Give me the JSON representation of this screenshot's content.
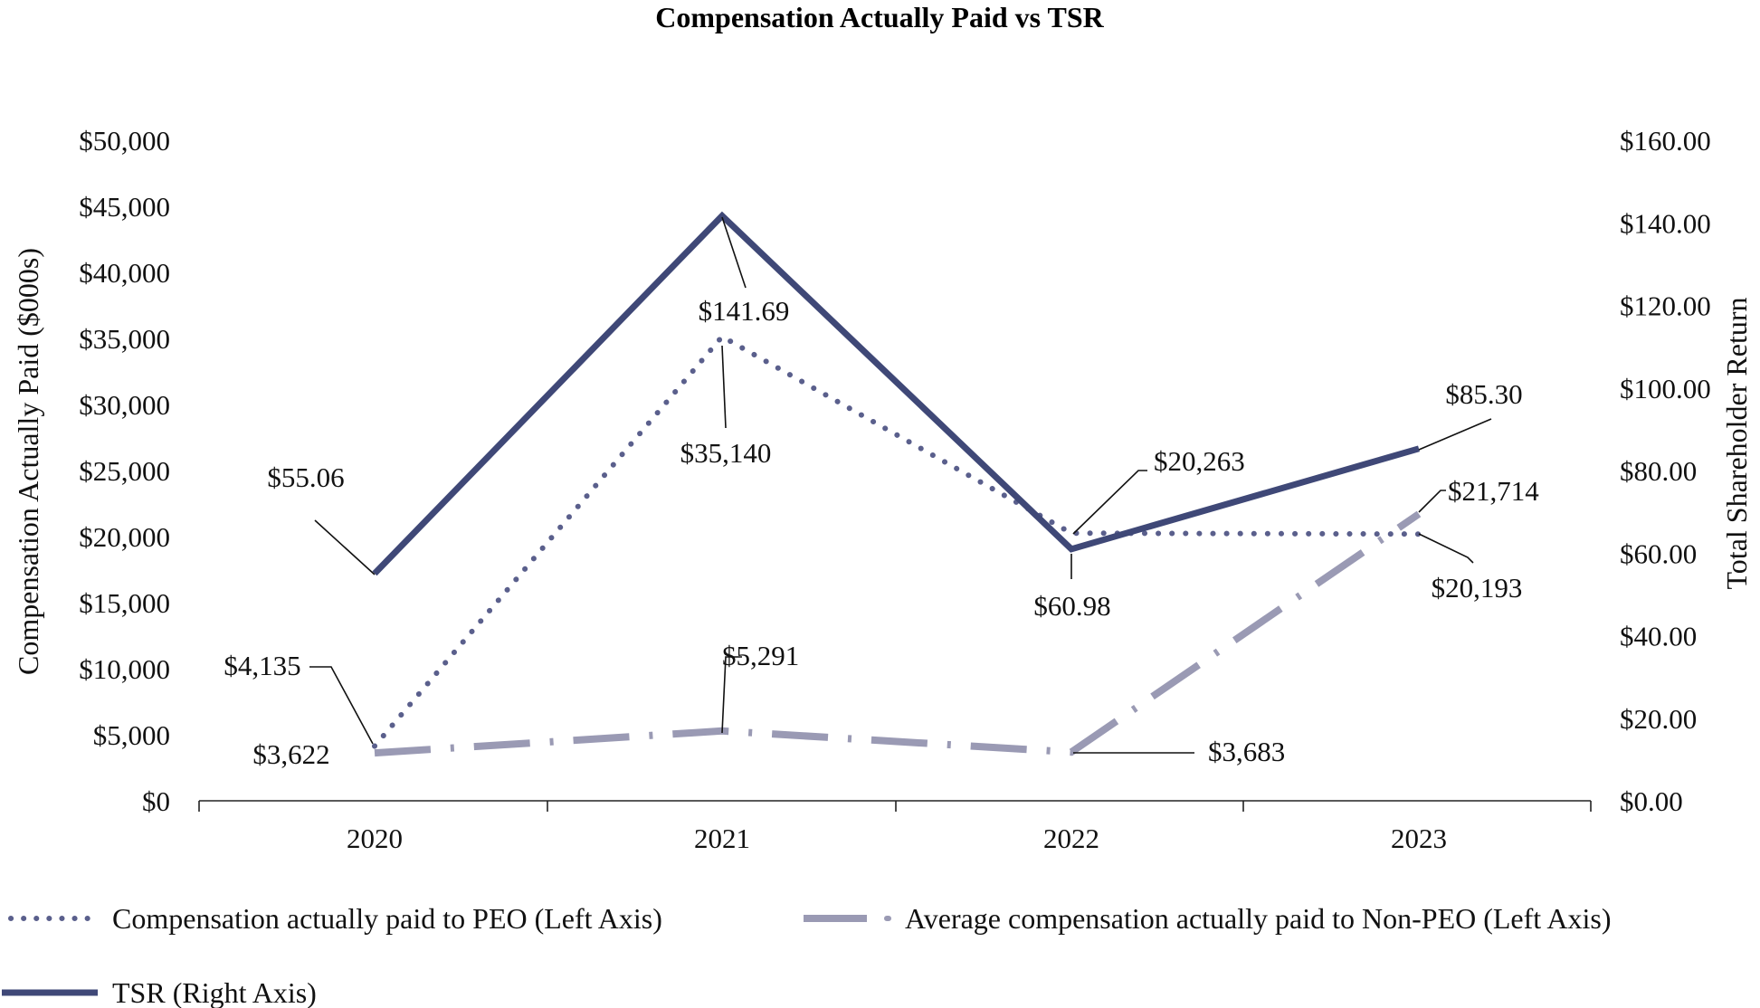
{
  "chart_data": {
    "type": "line",
    "title": "Compensation Actually Paid vs TSR",
    "categories": [
      "2020",
      "2021",
      "2022",
      "2023"
    ],
    "left_axis": {
      "label": "Compensation Actually Paid ($000s)",
      "range": [
        0,
        50000
      ],
      "ticks": [
        "$0",
        "$5,000",
        "$10,000",
        "$15,000",
        "$20,000",
        "$25,000",
        "$30,000",
        "$35,000",
        "$40,000",
        "$45,000",
        "$50,000"
      ]
    },
    "right_axis": {
      "label": "Total Shareholder Return",
      "range": [
        0,
        160
      ],
      "ticks": [
        "$0.00",
        "$20.00",
        "$40.00",
        "$60.00",
        "$80.00",
        "$100.00",
        "$120.00",
        "$140.00",
        "$160.00"
      ]
    },
    "grid": false,
    "legend_position": "bottom",
    "series": [
      {
        "name": "Compensation actually paid to PEO (Left Axis)",
        "axis": "left",
        "style": "dotted",
        "color": "#5a5f8c",
        "values": [
          4135,
          35140,
          20263,
          20193
        ],
        "labels": [
          "$4,135",
          "$35,140",
          "$20,263",
          "$20,193"
        ]
      },
      {
        "name": "Average compensation actually paid to Non-PEO (Left Axis)",
        "axis": "left",
        "style": "dash-dot",
        "color": "#9a9ab4",
        "values": [
          3622,
          5291,
          3683,
          21714
        ],
        "labels": [
          "$3,622",
          "$5,291",
          "$3,683",
          "$21,714"
        ]
      },
      {
        "name": "TSR (Right Axis)",
        "axis": "right",
        "style": "solid",
        "color": "#3f4877",
        "values": [
          55.06,
          141.69,
          60.98,
          85.3
        ],
        "labels": [
          "$55.06",
          "$141.69",
          "$60.98",
          "$85.30"
        ]
      }
    ]
  }
}
